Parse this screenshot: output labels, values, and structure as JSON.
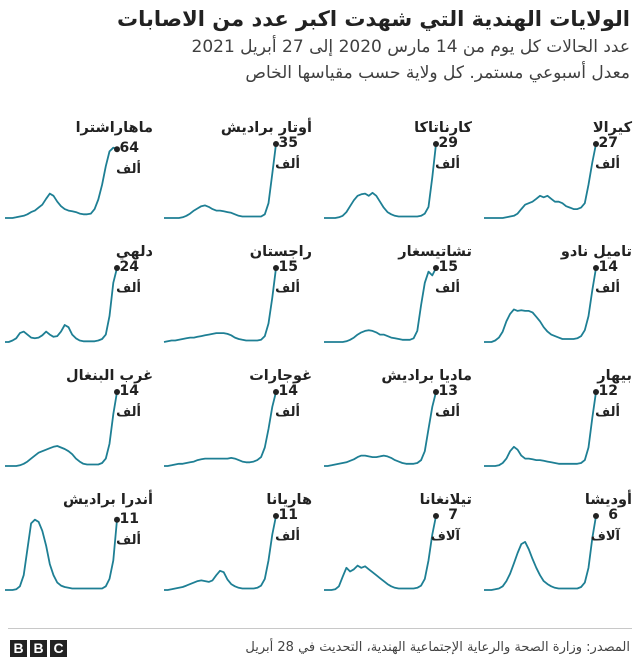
{
  "title": "الولايات الهندية التي شهدت اكبر عدد من الاصابات",
  "subtitle_1": "عدد الحالات كل يوم من 14 مارس 2020 إلى 27 أبريل 2021",
  "subtitle_2": "معدل أسبوعي مستمر. كل ولاية حسب مقياسها الخاص",
  "source": "المصدر: وزارة الصحة والرعاية الإجتماعية الهندية، التحديث في 28 أبريل",
  "brand": [
    "B",
    "B",
    "C"
  ],
  "colors": {
    "line": "#1e7f94",
    "text": "#222222",
    "dot": "#222222"
  },
  "chart_data": [
    {
      "type": "line",
      "state": "كيرالا",
      "last_value": "27",
      "unit": "ألف",
      "y": [
        0.0,
        0.0,
        0.0,
        0.0,
        0.0,
        0.0,
        0.01,
        0.02,
        0.03,
        0.06,
        0.12,
        0.18,
        0.2,
        0.22,
        0.26,
        0.3,
        0.28,
        0.3,
        0.26,
        0.22,
        0.22,
        0.2,
        0.16,
        0.14,
        0.12,
        0.12,
        0.14,
        0.2,
        0.45,
        0.75,
        1.0
      ]
    },
    {
      "type": "line",
      "state": "كارناتاكا",
      "last_value": "29",
      "unit": "ألف",
      "y": [
        0.0,
        0.0,
        0.0,
        0.0,
        0.01,
        0.03,
        0.08,
        0.16,
        0.24,
        0.3,
        0.32,
        0.33,
        0.3,
        0.34,
        0.3,
        0.22,
        0.14,
        0.08,
        0.05,
        0.03,
        0.02,
        0.02,
        0.02,
        0.02,
        0.02,
        0.02,
        0.03,
        0.06,
        0.15,
        0.55,
        1.0
      ]
    },
    {
      "type": "line",
      "state": "أوتار براديش",
      "last_value": "35",
      "unit": "ألف",
      "y": [
        0.0,
        0.0,
        0.0,
        0.0,
        0.0,
        0.01,
        0.03,
        0.06,
        0.1,
        0.13,
        0.16,
        0.17,
        0.15,
        0.12,
        0.1,
        0.1,
        0.09,
        0.08,
        0.07,
        0.05,
        0.03,
        0.02,
        0.02,
        0.02,
        0.02,
        0.02,
        0.02,
        0.05,
        0.2,
        0.6,
        1.0
      ]
    },
    {
      "type": "line",
      "state": "ماهاراشترا",
      "last_value": "64",
      "unit": "ألف",
      "y": [
        0.0,
        0.0,
        0.0,
        0.01,
        0.02,
        0.03,
        0.05,
        0.08,
        0.1,
        0.14,
        0.18,
        0.26,
        0.33,
        0.3,
        0.22,
        0.16,
        0.12,
        0.1,
        0.09,
        0.08,
        0.06,
        0.05,
        0.05,
        0.06,
        0.12,
        0.25,
        0.45,
        0.7,
        0.9,
        0.95,
        0.93
      ]
    },
    {
      "type": "line",
      "state": "تاميل نادو",
      "last_value": "14",
      "unit": "ألف",
      "y": [
        0.0,
        0.0,
        0.0,
        0.02,
        0.06,
        0.14,
        0.28,
        0.38,
        0.44,
        0.42,
        0.43,
        0.42,
        0.42,
        0.4,
        0.34,
        0.28,
        0.2,
        0.14,
        0.1,
        0.08,
        0.06,
        0.04,
        0.04,
        0.04,
        0.04,
        0.05,
        0.08,
        0.16,
        0.35,
        0.7,
        1.0
      ]
    },
    {
      "type": "line",
      "state": "تشاتيسغار",
      "last_value": "15",
      "unit": "ألف",
      "y": [
        0.0,
        0.0,
        0.0,
        0.0,
        0.0,
        0.0,
        0.01,
        0.03,
        0.06,
        0.1,
        0.13,
        0.15,
        0.16,
        0.15,
        0.13,
        0.1,
        0.1,
        0.08,
        0.06,
        0.05,
        0.04,
        0.03,
        0.03,
        0.03,
        0.05,
        0.15,
        0.5,
        0.8,
        0.95,
        0.9,
        1.0
      ]
    },
    {
      "type": "line",
      "state": "راجستان",
      "last_value": "15",
      "unit": "ألف",
      "y": [
        0.0,
        0.01,
        0.02,
        0.02,
        0.03,
        0.04,
        0.05,
        0.06,
        0.06,
        0.07,
        0.08,
        0.09,
        0.1,
        0.11,
        0.12,
        0.12,
        0.12,
        0.11,
        0.09,
        0.06,
        0.04,
        0.03,
        0.02,
        0.02,
        0.02,
        0.02,
        0.03,
        0.08,
        0.25,
        0.6,
        1.0
      ]
    },
    {
      "type": "line",
      "state": "دلهي",
      "last_value": "24",
      "unit": "ألف",
      "y": [
        0.0,
        0.0,
        0.02,
        0.05,
        0.12,
        0.14,
        0.1,
        0.06,
        0.05,
        0.06,
        0.09,
        0.14,
        0.1,
        0.07,
        0.08,
        0.14,
        0.23,
        0.2,
        0.1,
        0.05,
        0.02,
        0.01,
        0.01,
        0.01,
        0.01,
        0.02,
        0.04,
        0.1,
        0.35,
        0.8,
        1.0
      ]
    },
    {
      "type": "line",
      "state": "بيهار",
      "last_value": "12",
      "unit": "ألف",
      "y": [
        0.0,
        0.0,
        0.0,
        0.0,
        0.01,
        0.04,
        0.1,
        0.2,
        0.26,
        0.22,
        0.14,
        0.1,
        0.1,
        0.09,
        0.08,
        0.08,
        0.07,
        0.06,
        0.05,
        0.04,
        0.03,
        0.03,
        0.03,
        0.03,
        0.03,
        0.03,
        0.04,
        0.08,
        0.25,
        0.65,
        1.0
      ]
    },
    {
      "type": "line",
      "state": "ماديا براديش",
      "last_value": "13",
      "unit": "ألف",
      "y": [
        0.0,
        0.0,
        0.01,
        0.02,
        0.03,
        0.04,
        0.05,
        0.07,
        0.09,
        0.12,
        0.14,
        0.14,
        0.13,
        0.12,
        0.12,
        0.13,
        0.14,
        0.13,
        0.11,
        0.08,
        0.06,
        0.04,
        0.03,
        0.03,
        0.03,
        0.04,
        0.08,
        0.2,
        0.5,
        0.8,
        1.0
      ]
    },
    {
      "type": "line",
      "state": "غوجارات",
      "last_value": "14",
      "unit": "ألف",
      "y": [
        0.0,
        0.0,
        0.01,
        0.02,
        0.03,
        0.03,
        0.04,
        0.05,
        0.06,
        0.08,
        0.09,
        0.1,
        0.1,
        0.1,
        0.1,
        0.1,
        0.1,
        0.1,
        0.11,
        0.1,
        0.08,
        0.06,
        0.05,
        0.05,
        0.06,
        0.08,
        0.12,
        0.25,
        0.5,
        0.8,
        1.0
      ]
    },
    {
      "type": "line",
      "state": "غرب البنغال",
      "last_value": "14",
      "unit": "ألف",
      "y": [
        0.0,
        0.0,
        0.0,
        0.0,
        0.01,
        0.03,
        0.06,
        0.1,
        0.14,
        0.18,
        0.2,
        0.22,
        0.24,
        0.26,
        0.27,
        0.25,
        0.23,
        0.2,
        0.16,
        0.1,
        0.06,
        0.03,
        0.02,
        0.02,
        0.02,
        0.02,
        0.04,
        0.1,
        0.3,
        0.7,
        1.0
      ]
    },
    {
      "type": "line",
      "state": "أوديشا",
      "last_value": "6",
      "unit": "آلاف",
      "y": [
        0.0,
        0.0,
        0.0,
        0.01,
        0.02,
        0.05,
        0.12,
        0.22,
        0.36,
        0.5,
        0.62,
        0.65,
        0.55,
        0.42,
        0.3,
        0.2,
        0.12,
        0.08,
        0.05,
        0.03,
        0.02,
        0.02,
        0.02,
        0.02,
        0.02,
        0.02,
        0.04,
        0.1,
        0.3,
        0.7,
        1.0
      ]
    },
    {
      "type": "line",
      "state": "تيلانغانا",
      "last_value": "7",
      "unit": "آلاف",
      "y": [
        0.0,
        0.0,
        0.0,
        0.01,
        0.05,
        0.18,
        0.3,
        0.25,
        0.28,
        0.33,
        0.3,
        0.32,
        0.28,
        0.24,
        0.2,
        0.16,
        0.12,
        0.08,
        0.05,
        0.03,
        0.02,
        0.02,
        0.02,
        0.02,
        0.02,
        0.03,
        0.06,
        0.15,
        0.4,
        0.75,
        1.0
      ]
    },
    {
      "type": "line",
      "state": "هاريانا",
      "last_value": "11",
      "unit": "ألف",
      "y": [
        0.0,
        0.0,
        0.01,
        0.02,
        0.03,
        0.04,
        0.06,
        0.08,
        0.1,
        0.12,
        0.13,
        0.12,
        0.11,
        0.13,
        0.2,
        0.26,
        0.24,
        0.14,
        0.08,
        0.05,
        0.03,
        0.02,
        0.02,
        0.02,
        0.02,
        0.03,
        0.06,
        0.15,
        0.4,
        0.75,
        1.0
      ]
    },
    {
      "type": "line",
      "state": "أندرا براديش",
      "last_value": "11",
      "unit": "ألف",
      "y": [
        0.0,
        0.0,
        0.0,
        0.01,
        0.05,
        0.2,
        0.55,
        0.9,
        0.95,
        0.92,
        0.8,
        0.6,
        0.35,
        0.2,
        0.1,
        0.06,
        0.04,
        0.03,
        0.02,
        0.02,
        0.02,
        0.02,
        0.02,
        0.02,
        0.02,
        0.02,
        0.02,
        0.05,
        0.15,
        0.4,
        0.95
      ]
    }
  ]
}
